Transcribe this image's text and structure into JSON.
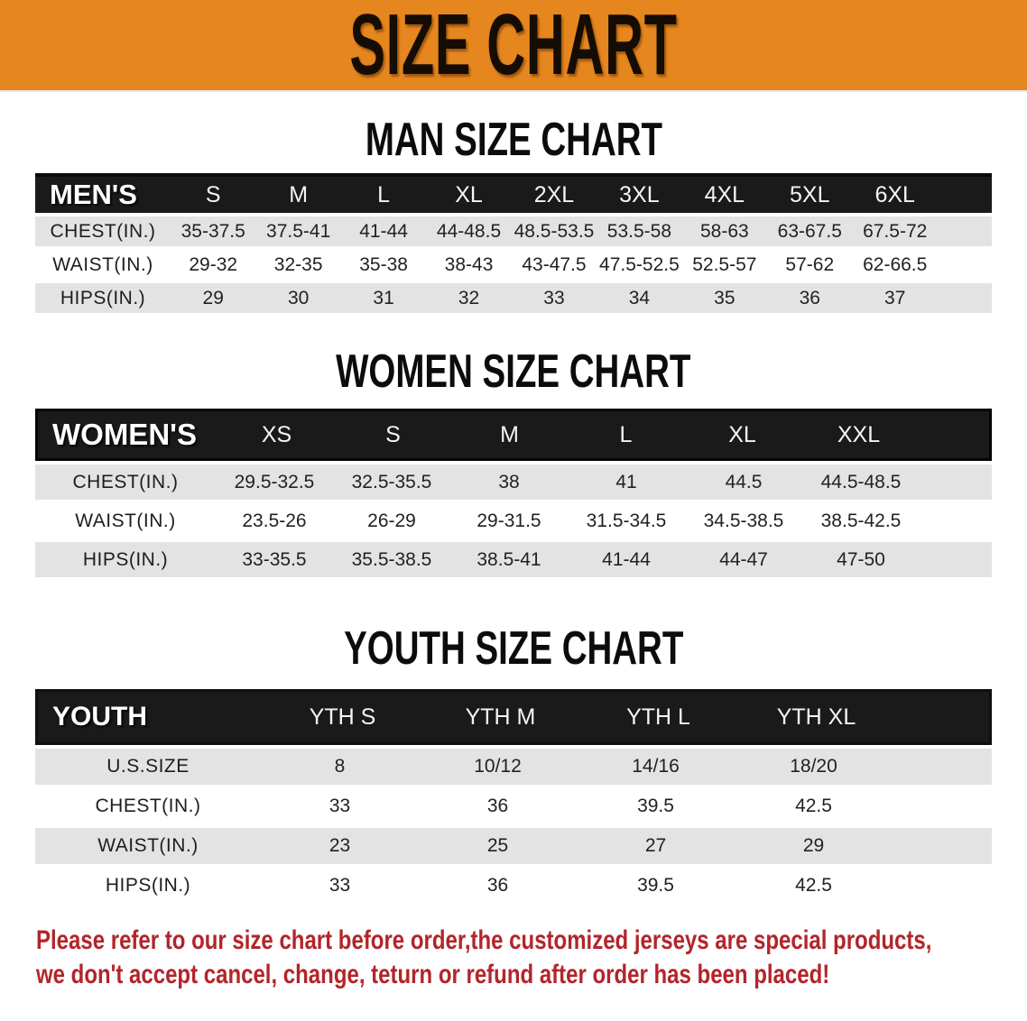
{
  "banner": {
    "title": "SIZE CHART"
  },
  "men": {
    "heading": "MAN SIZE CHART",
    "table": {
      "corner": "MEN'S",
      "sizes": [
        "S",
        "M",
        "L",
        "XL",
        "2XL",
        "3XL",
        "4XL",
        "5XL",
        "6XL"
      ],
      "rows": [
        {
          "label": "CHEST(IN.)",
          "values": [
            "35-37.5",
            "37.5-41",
            "41-44",
            "44-48.5",
            "48.5-53.5",
            "53.5-58",
            "58-63",
            "63-67.5",
            "67.5-72"
          ]
        },
        {
          "label": "WAIST(IN.)",
          "values": [
            "29-32",
            "32-35",
            "35-38",
            "38-43",
            "43-47.5",
            "47.5-52.5",
            "52.5-57",
            "57-62",
            "62-66.5"
          ]
        },
        {
          "label": "HIPS(IN.)",
          "values": [
            "29",
            "30",
            "31",
            "32",
            "33",
            "34",
            "35",
            "36",
            "37"
          ]
        }
      ]
    }
  },
  "women": {
    "heading": "WOMEN SIZE CHART",
    "table": {
      "corner": "WOMEN'S",
      "sizes": [
        "XS",
        "S",
        "M",
        "L",
        "XL",
        "XXL"
      ],
      "rows": [
        {
          "label": "CHEST(IN.)",
          "values": [
            "29.5-32.5",
            "32.5-35.5",
            "38",
            "41",
            "44.5",
            "44.5-48.5"
          ]
        },
        {
          "label": "WAIST(IN.)",
          "values": [
            "23.5-26",
            "26-29",
            "29-31.5",
            "31.5-34.5",
            "34.5-38.5",
            "38.5-42.5"
          ]
        },
        {
          "label": "HIPS(IN.)",
          "values": [
            "33-35.5",
            "35.5-38.5",
            "38.5-41",
            "41-44",
            "44-47",
            "47-50"
          ]
        }
      ]
    }
  },
  "youth": {
    "heading": "YOUTH SIZE CHART",
    "table": {
      "corner": "YOUTH",
      "sizes": [
        "YTH S",
        "YTH M",
        "YTH L",
        "YTH XL"
      ],
      "rows": [
        {
          "label": "U.S.SIZE",
          "values": [
            "8",
            "10/12",
            "14/16",
            "18/20"
          ]
        },
        {
          "label": "CHEST(IN.)",
          "values": [
            "33",
            "36",
            "39.5",
            "42.5"
          ]
        },
        {
          "label": "WAIST(IN.)",
          "values": [
            "23",
            "25",
            "27",
            "29"
          ]
        },
        {
          "label": "HIPS(IN.)",
          "values": [
            "33",
            "36",
            "39.5",
            "42.5"
          ]
        }
      ]
    }
  },
  "note": {
    "line1": "Please refer to our size chart before order,the customized jerseys are special products,",
    "line2": "we don't accept cancel, change, teturn or refund after order has been placed!"
  },
  "colors": {
    "banner_bg": "#E6861E",
    "table_header_bg": "#1A1A1A",
    "row_alt_bg": "#E3E3E3",
    "note_text": "#B2252A"
  }
}
